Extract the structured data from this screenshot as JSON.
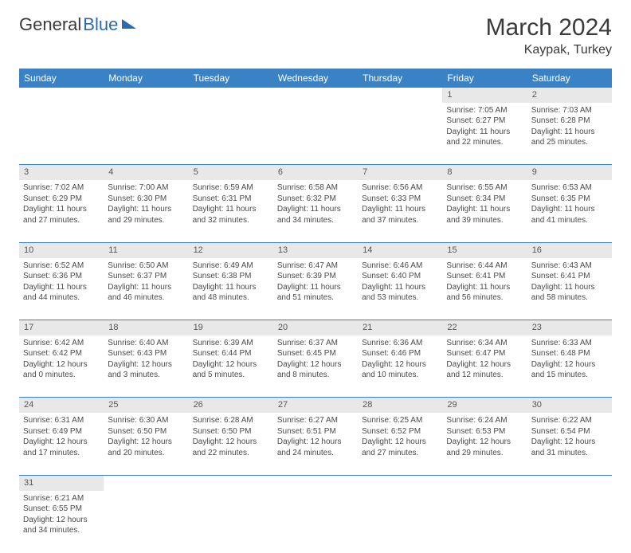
{
  "logo": {
    "part1": "General",
    "part2": "Blue"
  },
  "title": "March 2024",
  "location": "Kaypak, Turkey",
  "colors": {
    "header_bg": "#3b82c4",
    "header_text": "#ffffff",
    "daynum_bg": "#e8e8e8",
    "border": "#3b82c4",
    "logo_blue": "#2a6bb0",
    "text": "#4a4a4a"
  },
  "weekday_headers": [
    "Sunday",
    "Monday",
    "Tuesday",
    "Wednesday",
    "Thursday",
    "Friday",
    "Saturday"
  ],
  "weeks": [
    {
      "nums": [
        "",
        "",
        "",
        "",
        "",
        "1",
        "2"
      ],
      "cells": [
        null,
        null,
        null,
        null,
        null,
        {
          "sunrise": "Sunrise: 7:05 AM",
          "sunset": "Sunset: 6:27 PM",
          "day1": "Daylight: 11 hours",
          "day2": "and 22 minutes."
        },
        {
          "sunrise": "Sunrise: 7:03 AM",
          "sunset": "Sunset: 6:28 PM",
          "day1": "Daylight: 11 hours",
          "day2": "and 25 minutes."
        }
      ]
    },
    {
      "nums": [
        "3",
        "4",
        "5",
        "6",
        "7",
        "8",
        "9"
      ],
      "cells": [
        {
          "sunrise": "Sunrise: 7:02 AM",
          "sunset": "Sunset: 6:29 PM",
          "day1": "Daylight: 11 hours",
          "day2": "and 27 minutes."
        },
        {
          "sunrise": "Sunrise: 7:00 AM",
          "sunset": "Sunset: 6:30 PM",
          "day1": "Daylight: 11 hours",
          "day2": "and 29 minutes."
        },
        {
          "sunrise": "Sunrise: 6:59 AM",
          "sunset": "Sunset: 6:31 PM",
          "day1": "Daylight: 11 hours",
          "day2": "and 32 minutes."
        },
        {
          "sunrise": "Sunrise: 6:58 AM",
          "sunset": "Sunset: 6:32 PM",
          "day1": "Daylight: 11 hours",
          "day2": "and 34 minutes."
        },
        {
          "sunrise": "Sunrise: 6:56 AM",
          "sunset": "Sunset: 6:33 PM",
          "day1": "Daylight: 11 hours",
          "day2": "and 37 minutes."
        },
        {
          "sunrise": "Sunrise: 6:55 AM",
          "sunset": "Sunset: 6:34 PM",
          "day1": "Daylight: 11 hours",
          "day2": "and 39 minutes."
        },
        {
          "sunrise": "Sunrise: 6:53 AM",
          "sunset": "Sunset: 6:35 PM",
          "day1": "Daylight: 11 hours",
          "day2": "and 41 minutes."
        }
      ]
    },
    {
      "nums": [
        "10",
        "11",
        "12",
        "13",
        "14",
        "15",
        "16"
      ],
      "cells": [
        {
          "sunrise": "Sunrise: 6:52 AM",
          "sunset": "Sunset: 6:36 PM",
          "day1": "Daylight: 11 hours",
          "day2": "and 44 minutes."
        },
        {
          "sunrise": "Sunrise: 6:50 AM",
          "sunset": "Sunset: 6:37 PM",
          "day1": "Daylight: 11 hours",
          "day2": "and 46 minutes."
        },
        {
          "sunrise": "Sunrise: 6:49 AM",
          "sunset": "Sunset: 6:38 PM",
          "day1": "Daylight: 11 hours",
          "day2": "and 48 minutes."
        },
        {
          "sunrise": "Sunrise: 6:47 AM",
          "sunset": "Sunset: 6:39 PM",
          "day1": "Daylight: 11 hours",
          "day2": "and 51 minutes."
        },
        {
          "sunrise": "Sunrise: 6:46 AM",
          "sunset": "Sunset: 6:40 PM",
          "day1": "Daylight: 11 hours",
          "day2": "and 53 minutes."
        },
        {
          "sunrise": "Sunrise: 6:44 AM",
          "sunset": "Sunset: 6:41 PM",
          "day1": "Daylight: 11 hours",
          "day2": "and 56 minutes."
        },
        {
          "sunrise": "Sunrise: 6:43 AM",
          "sunset": "Sunset: 6:41 PM",
          "day1": "Daylight: 11 hours",
          "day2": "and 58 minutes."
        }
      ]
    },
    {
      "nums": [
        "17",
        "18",
        "19",
        "20",
        "21",
        "22",
        "23"
      ],
      "cells": [
        {
          "sunrise": "Sunrise: 6:42 AM",
          "sunset": "Sunset: 6:42 PM",
          "day1": "Daylight: 12 hours",
          "day2": "and 0 minutes."
        },
        {
          "sunrise": "Sunrise: 6:40 AM",
          "sunset": "Sunset: 6:43 PM",
          "day1": "Daylight: 12 hours",
          "day2": "and 3 minutes."
        },
        {
          "sunrise": "Sunrise: 6:39 AM",
          "sunset": "Sunset: 6:44 PM",
          "day1": "Daylight: 12 hours",
          "day2": "and 5 minutes."
        },
        {
          "sunrise": "Sunrise: 6:37 AM",
          "sunset": "Sunset: 6:45 PM",
          "day1": "Daylight: 12 hours",
          "day2": "and 8 minutes."
        },
        {
          "sunrise": "Sunrise: 6:36 AM",
          "sunset": "Sunset: 6:46 PM",
          "day1": "Daylight: 12 hours",
          "day2": "and 10 minutes."
        },
        {
          "sunrise": "Sunrise: 6:34 AM",
          "sunset": "Sunset: 6:47 PM",
          "day1": "Daylight: 12 hours",
          "day2": "and 12 minutes."
        },
        {
          "sunrise": "Sunrise: 6:33 AM",
          "sunset": "Sunset: 6:48 PM",
          "day1": "Daylight: 12 hours",
          "day2": "and 15 minutes."
        }
      ]
    },
    {
      "nums": [
        "24",
        "25",
        "26",
        "27",
        "28",
        "29",
        "30"
      ],
      "cells": [
        {
          "sunrise": "Sunrise: 6:31 AM",
          "sunset": "Sunset: 6:49 PM",
          "day1": "Daylight: 12 hours",
          "day2": "and 17 minutes."
        },
        {
          "sunrise": "Sunrise: 6:30 AM",
          "sunset": "Sunset: 6:50 PM",
          "day1": "Daylight: 12 hours",
          "day2": "and 20 minutes."
        },
        {
          "sunrise": "Sunrise: 6:28 AM",
          "sunset": "Sunset: 6:50 PM",
          "day1": "Daylight: 12 hours",
          "day2": "and 22 minutes."
        },
        {
          "sunrise": "Sunrise: 6:27 AM",
          "sunset": "Sunset: 6:51 PM",
          "day1": "Daylight: 12 hours",
          "day2": "and 24 minutes."
        },
        {
          "sunrise": "Sunrise: 6:25 AM",
          "sunset": "Sunset: 6:52 PM",
          "day1": "Daylight: 12 hours",
          "day2": "and 27 minutes."
        },
        {
          "sunrise": "Sunrise: 6:24 AM",
          "sunset": "Sunset: 6:53 PM",
          "day1": "Daylight: 12 hours",
          "day2": "and 29 minutes."
        },
        {
          "sunrise": "Sunrise: 6:22 AM",
          "sunset": "Sunset: 6:54 PM",
          "day1": "Daylight: 12 hours",
          "day2": "and 31 minutes."
        }
      ]
    },
    {
      "nums": [
        "31",
        "",
        "",
        "",
        "",
        "",
        ""
      ],
      "cells": [
        {
          "sunrise": "Sunrise: 6:21 AM",
          "sunset": "Sunset: 6:55 PM",
          "day1": "Daylight: 12 hours",
          "day2": "and 34 minutes."
        },
        null,
        null,
        null,
        null,
        null,
        null
      ]
    }
  ]
}
